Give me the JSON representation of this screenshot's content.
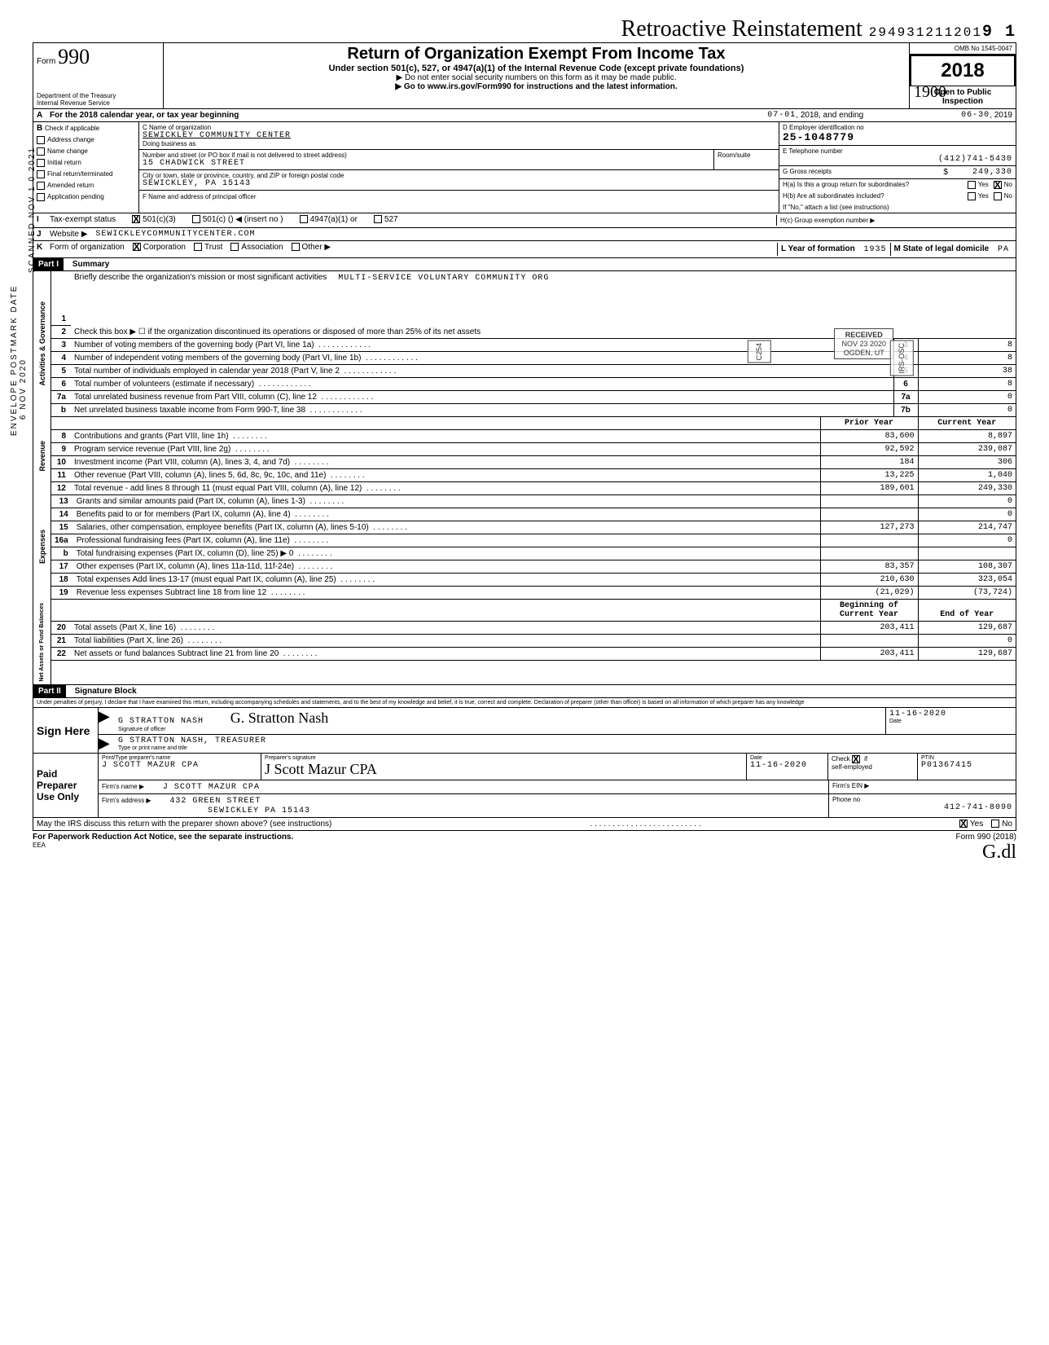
{
  "header": {
    "cursive": "Retroactive Reinstatement",
    "topnumber": "294931211201",
    "topnumber_suffix": "9 1",
    "omb": "OMB No 1545-0047",
    "form_label": "Form",
    "form_num": "990",
    "title": "Return of Organization Exempt From Income Tax",
    "subtitle": "Under section 501(c), 527, or 4947(a)(1) of the Internal Revenue Code (except private foundations)",
    "instr1": "▶ Do not enter social security numbers on this form as it may be made public.",
    "instr2": "▶ Go to www.irs.gov/Form990 for instructions and the latest information.",
    "year": "2018",
    "dept": "Department of the Treasury",
    "irs": "Internal Revenue Service",
    "open": "Open to Public",
    "inspection": "Inspection",
    "handwritten": "1900"
  },
  "period": {
    "line_a": "For the 2018 calendar year, or tax year beginning",
    "begin": "07-01",
    "mid": ", 2018, and ending",
    "end": "06-30",
    "endyear": ", 2019"
  },
  "box_b": {
    "label": "B",
    "check_if": "Check if applicable",
    "items": [
      "Address change",
      "Name change",
      "Initial return",
      "Final return/terminated",
      "Amended return",
      "Application pending"
    ]
  },
  "box_c": {
    "c_label": "C  Name of organization",
    "org_name": "SEWICKLEY COMMUNITY CENTER",
    "dba_label": "Doing business as",
    "street_label": "Number and street (or PO box if mail is not delivered to street address)",
    "street": "15 CHADWICK STREET",
    "room_label": "Room/suite",
    "city_label": "City or town, state or province, country, and ZIP or foreign postal code",
    "city": "SEWICKLEY, PA 15143",
    "f_label": "F  Name and address of principal officer"
  },
  "box_d": {
    "label": "D  Employer identification no",
    "ein": "25-1048779"
  },
  "box_e": {
    "label": "E  Telephone number",
    "phone": "(412)741-5430"
  },
  "box_g": {
    "label": "G  Gross receipts",
    "amount": "249,330",
    "dollar": "$"
  },
  "box_h": {
    "h_a": "H(a) Is this a group return for subordinates?",
    "h_b": "H(b) Are all subordinates included?",
    "yes": "Yes",
    "no": "No",
    "note": "If \"No,\" attach a list (see instructions)",
    "h_c": "H(c)  Group exemption number  ▶"
  },
  "row_i": {
    "label": "I",
    "text": "Tax-exempt status",
    "opt1": "501(c)(3)",
    "opt2": "501(c) (",
    "insert": ")  ◀  (insert no )",
    "opt3": "4947(a)(1) or",
    "opt4": "527"
  },
  "row_j": {
    "label": "J",
    "text": "Website ▶",
    "value": "SEWICKLEYCOMMUNITYCENTER.COM"
  },
  "row_k": {
    "label": "K",
    "text": "Form of organization",
    "corp": "Corporation",
    "trust": "Trust",
    "assoc": "Association",
    "other": "Other ▶",
    "l_label": "L  Year of formation",
    "l_val": "1935",
    "m_label": "M  State of legal domicile",
    "m_val": "PA"
  },
  "part1": {
    "header": "Part I",
    "title": "Summary",
    "line1_label": "Briefly describe the organization's mission or most significant activities",
    "line1_val": "MULTI-SERVICE VOLUNTARY COMMUNITY ORG",
    "line2": "Check this box ▶ ☐ if the organization discontinued its operations or disposed of more than 25% of its net assets",
    "prior": "Prior Year",
    "current": "Current Year",
    "begin_cy": "Beginning of Current Year",
    "end_cy": "End of Year",
    "side_gov": "Activities & Governance",
    "side_rev": "Revenue",
    "side_exp": "Expenses",
    "side_net": "Net Assets or\nFund Balances",
    "rows_gov": [
      {
        "n": "3",
        "t": "Number of voting members of the governing body (Part VI, line 1a)",
        "c": "3",
        "v": "8"
      },
      {
        "n": "4",
        "t": "Number of independent voting members of the governing body (Part VI, line 1b)",
        "c": "4",
        "v": "8"
      },
      {
        "n": "5",
        "t": "Total number of individuals employed in calendar year 2018 (Part V, line 2",
        "c": "5",
        "v": "38"
      },
      {
        "n": "6",
        "t": "Total number of volunteers (estimate if necessary)",
        "c": "6",
        "v": "8"
      },
      {
        "n": "7a",
        "t": "Total unrelated business revenue from Part VIII, column (C), line 12",
        "c": "7a",
        "v": "0"
      },
      {
        "n": "b",
        "t": "Net unrelated business taxable income from Form 990-T, line 38",
        "c": "7b",
        "v": "0"
      }
    ],
    "rows_rev": [
      {
        "n": "8",
        "t": "Contributions and grants (Part VIII, line 1h)",
        "p": "83,600",
        "v": "8,897"
      },
      {
        "n": "9",
        "t": "Program service revenue (Part VIII, line 2g)",
        "p": "92,592",
        "v": "239,087"
      },
      {
        "n": "10",
        "t": "Investment income (Part VIII, column (A), lines 3, 4, and 7d)",
        "p": "184",
        "v": "306"
      },
      {
        "n": "11",
        "t": "Other revenue (Part VIII, column (A), lines 5, 6d, 8c, 9c, 10c, and 11e)",
        "p": "13,225",
        "v": "1,040"
      },
      {
        "n": "12",
        "t": "Total revenue - add lines 8 through 11 (must equal Part VIII, column (A), line 12)",
        "p": "189,601",
        "v": "249,330"
      }
    ],
    "rows_exp": [
      {
        "n": "13",
        "t": "Grants and similar amounts paid (Part IX, column (A), lines 1-3)",
        "p": "",
        "v": "0"
      },
      {
        "n": "14",
        "t": "Benefits paid to or for members (Part IX, column (A), line 4)",
        "p": "",
        "v": "0"
      },
      {
        "n": "15",
        "t": "Salaries, other compensation, employee benefits (Part IX, column (A), lines 5-10)",
        "p": "127,273",
        "v": "214,747"
      },
      {
        "n": "16a",
        "t": "Professional fundraising fees (Part IX, column (A), line 11e)",
        "p": "",
        "v": "0"
      },
      {
        "n": "b",
        "t": "Total fundraising expenses (Part IX, column (D), line 25)    ▶                             0",
        "p": "",
        "v": ""
      },
      {
        "n": "17",
        "t": "Other expenses (Part IX, column (A), lines 11a-11d, 11f-24e)",
        "p": "83,357",
        "v": "108,307"
      },
      {
        "n": "18",
        "t": "Total expenses  Add lines 13-17 (must equal Part IX, column (A), line 25)",
        "p": "210,630",
        "v": "323,054"
      },
      {
        "n": "19",
        "t": "Revenue less expenses  Subtract line 18 from line 12",
        "p": "(21,029)",
        "v": "(73,724)"
      }
    ],
    "rows_net": [
      {
        "n": "20",
        "t": "Total assets (Part X, line 16)",
        "p": "203,411",
        "v": "129,687"
      },
      {
        "n": "21",
        "t": "Total liabilities (Part X, line 26)",
        "p": "",
        "v": "0"
      },
      {
        "n": "22",
        "t": "Net assets or fund balances  Subtract line 21 from line 20",
        "p": "203,411",
        "v": "129,687"
      }
    ]
  },
  "part2": {
    "header": "Part II",
    "title": "Signature Block",
    "perjury": "Under penalties of perjury, I declare that I have examined this return, including accompanying schedules and statements, and to the best of my knowledge and belief, it is true, correct and complete. Declaration of preparer (other than officer) is based on all information of which preparer has any knowledge",
    "sign_here": "Sign Here",
    "sig_name_print": "G STRATTON NASH",
    "sig_script": "G. Stratton Nash",
    "sig_label": "Signature of officer",
    "sig_date": "11-16-2020",
    "date_label": "Date",
    "title_print": "G STRATTON NASH, TREASURER",
    "title_label": "Type or print name and title",
    "paid": "Paid Preparer Use Only",
    "prep_name_label": "Print/Type preparer's name",
    "prep_name": "J SCOTT MAZUR CPA",
    "prep_sig_label": "Preparer's signature",
    "prep_sig": "J Scott Mazur CPA",
    "prep_date": "11-16-2020",
    "check_label": "Check",
    "if_label": "if",
    "self_emp": "self-employed",
    "ptin_label": "PTIN",
    "ptin": "P01367415",
    "firm_name_label": "Firm's name    ▶",
    "firm_name": "J SCOTT MAZUR CPA",
    "firm_ein_label": "Firm's EIN  ▶",
    "firm_addr_label": "Firm's address ▶",
    "firm_addr1": "432 GREEN STREET",
    "firm_addr2": "SEWICKLEY PA 15143",
    "phone_label": "Phone no",
    "phone": "412-741-8090",
    "discuss": "May the IRS discuss this return with the preparer shown above? (see instructions)",
    "yes": "Yes",
    "no": "No"
  },
  "footer": {
    "pra": "For Paperwork Reduction Act Notice, see the separate instructions.",
    "eea": "EEA",
    "formref": "Form 990 (2018)",
    "initials": "G.dl"
  },
  "stamps": {
    "received": "RECEIVED",
    "date": "NOV 23 2020",
    "ogden": "OGDEN, UT",
    "code": "C254",
    "irs": "IRS-OSC"
  },
  "left_margin": {
    "postmark": "ENVELOPE\nPOSTMARK DATE",
    "date": "6 NOV 2020",
    "scanned": "SCANNED NOV 1 0 2021"
  }
}
